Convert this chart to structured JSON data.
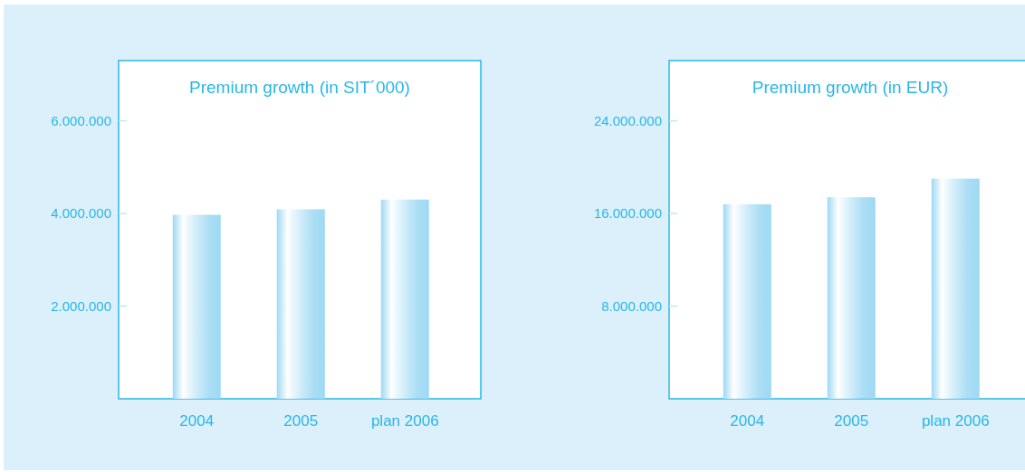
{
  "chart_data": [
    {
      "type": "bar",
      "title": "Premium growth (in SIT´000)",
      "categories": [
        "2004",
        "2005",
        "plan 2006"
      ],
      "values": [
        3970000,
        4090000,
        4300000
      ],
      "color": "#9dd9f3",
      "ylim": [
        0,
        7300000
      ],
      "yticks": [
        {
          "value": 2000000,
          "label": "2.000.000"
        },
        {
          "value": 4000000,
          "label": "4.000.000"
        },
        {
          "value": 6000000,
          "label": "6.000.000"
        }
      ]
    },
    {
      "type": "bar",
      "title": "Premium growth (in EUR)",
      "categories": [
        "2004",
        "2005",
        "plan 2006"
      ],
      "values": [
        16800000,
        17400000,
        19000000
      ],
      "color": "#9dd9f3",
      "ylim": [
        0,
        29200000
      ],
      "yticks": [
        {
          "value": 8000000,
          "label": "8.000.000"
        },
        {
          "value": 16000000,
          "label": "16.000.000"
        },
        {
          "value": 24000000,
          "label": "24.000.000"
        }
      ]
    }
  ]
}
